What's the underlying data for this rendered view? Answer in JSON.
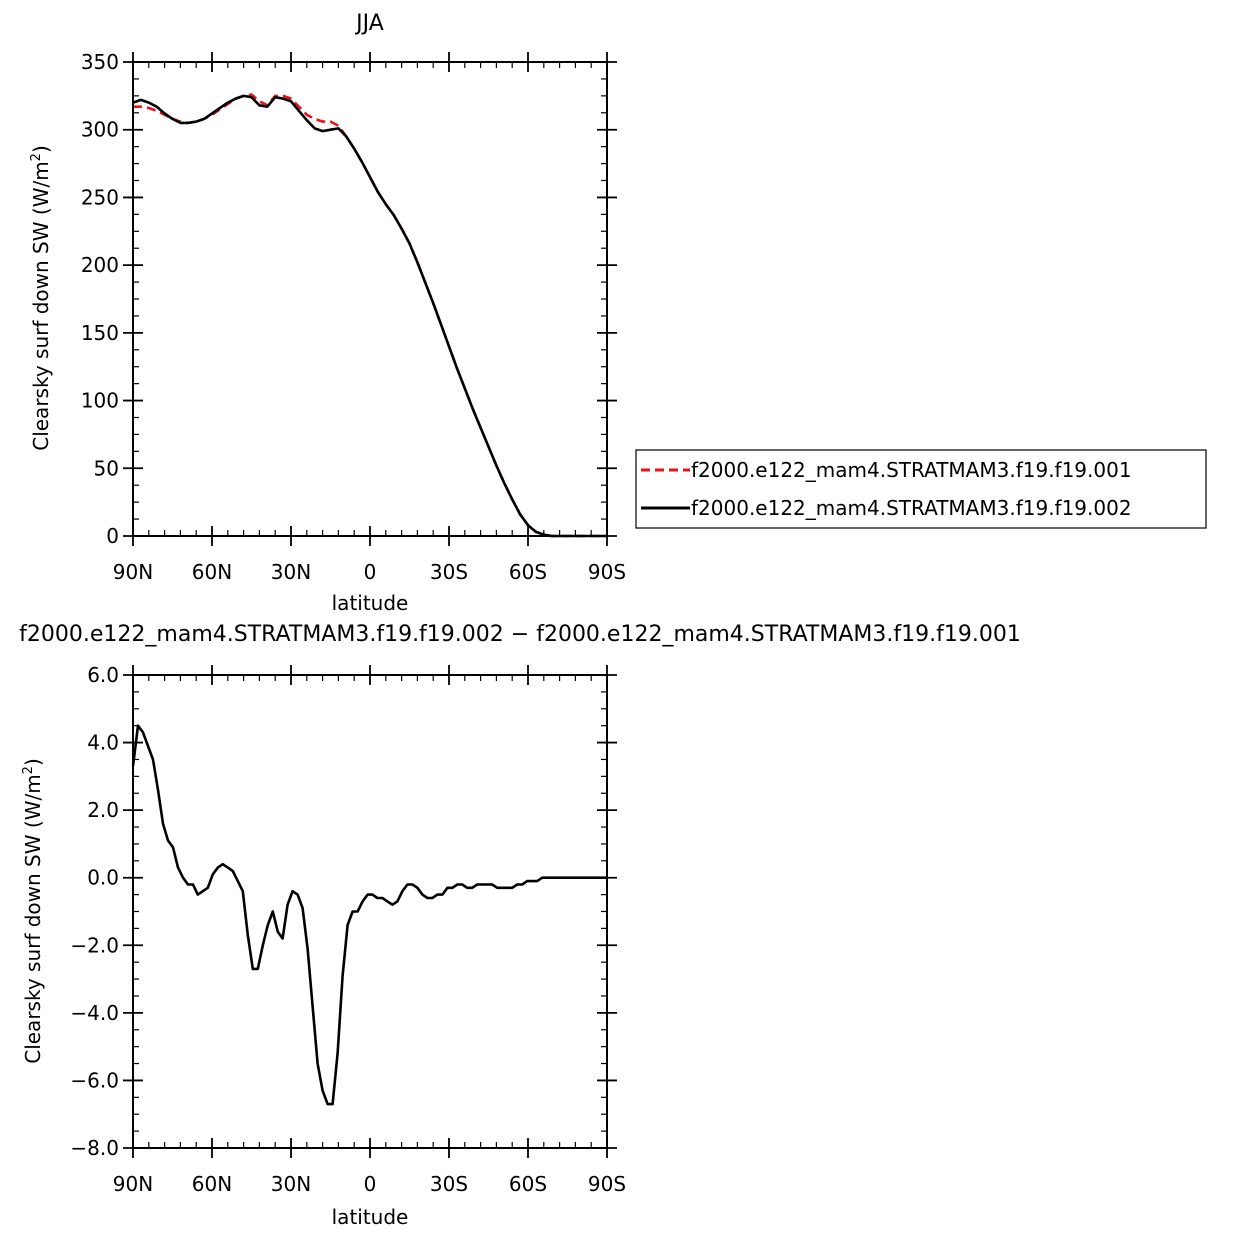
{
  "chart_data": [
    {
      "type": "line",
      "title": "JJA",
      "xlabel": "latitude",
      "ylabel": "Clearsky surf down SW (W/m²)",
      "ylabel_main": "Clearsky surf down SW (W/m",
      "ylabel_sup": "2",
      "ylabel_tail": ")",
      "xlim": [
        90,
        -90
      ],
      "ylim": [
        0,
        350
      ],
      "xticks": [
        90,
        60,
        30,
        0,
        -30,
        -60,
        -90
      ],
      "xtick_labels": [
        "90N",
        "60N",
        "30N",
        "0",
        "30S",
        "60S",
        "90S"
      ],
      "yticks": [
        0,
        50,
        100,
        150,
        200,
        250,
        300,
        350
      ],
      "ytick_labels": [
        "0",
        "50",
        "100",
        "150",
        "200",
        "250",
        "300",
        "350"
      ],
      "legend": {
        "position": "right",
        "entries": [
          "f2000.e122_mam4.STRATMAM3.f19.f19.001",
          "f2000.e122_mam4.STRATMAM3.f19.f19.002"
        ]
      },
      "series": [
        {
          "name": "f2000.e122_mam4.STRATMAM3.f19.f19.001",
          "color": "#e8121b",
          "dash": "dashed",
          "x": [
            90,
            87,
            84,
            81,
            78,
            75,
            72,
            69,
            66,
            63,
            60,
            57,
            54,
            51,
            48,
            45,
            42,
            39,
            36,
            33,
            30,
            27,
            24,
            21,
            18,
            15,
            12,
            9,
            6,
            3,
            0,
            -3,
            -6,
            -9,
            -12,
            -15,
            -18,
            -21,
            -24,
            -27,
            -30,
            -33,
            -36,
            -39,
            -42,
            -45,
            -48,
            -51,
            -54,
            -57,
            -60,
            -63,
            -66,
            -69,
            -72,
            -75,
            -78,
            -81,
            -84,
            -87,
            -90
          ],
          "y": [
            317,
            317,
            316,
            314,
            311,
            308,
            306,
            305,
            306,
            308,
            311,
            315,
            319,
            323,
            325,
            326,
            321,
            318,
            325,
            325,
            323,
            317,
            311,
            308,
            306,
            306,
            303,
            295,
            286,
            276,
            265,
            254,
            245,
            237,
            227,
            216,
            202,
            187,
            172,
            156,
            140,
            124,
            109,
            94,
            80,
            66,
            52,
            39,
            27,
            16,
            8,
            3,
            1,
            0,
            0,
            0,
            0,
            0,
            0,
            0,
            0
          ]
        },
        {
          "name": "f2000.e122_mam4.STRATMAM3.f19.f19.002",
          "color": "#000000",
          "dash": "solid",
          "x": [
            90,
            87,
            84,
            81,
            78,
            75,
            72,
            69,
            66,
            63,
            60,
            57,
            54,
            51,
            48,
            45,
            42,
            39,
            36,
            33,
            30,
            27,
            24,
            21,
            18,
            15,
            12,
            9,
            6,
            3,
            0,
            -3,
            -6,
            -9,
            -12,
            -15,
            -18,
            -21,
            -24,
            -27,
            -30,
            -33,
            -36,
            -39,
            -42,
            -45,
            -48,
            -51,
            -54,
            -57,
            -60,
            -63,
            -66,
            -69,
            -72,
            -75,
            -78,
            -81,
            -84,
            -87,
            -90
          ],
          "y": [
            320,
            322,
            320,
            317,
            312,
            308,
            305,
            305,
            306,
            308,
            312,
            316,
            320,
            323,
            325,
            324,
            318,
            317,
            324,
            323,
            321,
            314,
            307,
            301,
            299,
            300,
            301,
            295,
            286,
            276,
            265,
            254,
            245,
            237,
            227,
            216,
            202,
            187,
            172,
            156,
            140,
            124,
            109,
            94,
            80,
            66,
            52,
            39,
            27,
            16,
            8,
            3,
            1,
            0,
            0,
            0,
            0,
            0,
            0,
            0,
            0
          ]
        }
      ]
    },
    {
      "type": "line",
      "title": "f2000.e122_mam4.STRATMAM3.f19.f19.002 − f2000.e122_mam4.STRATMAM3.f19.f19.001",
      "xlabel": "latitude",
      "ylabel": "Clearsky surf down SW (W/m²)",
      "ylabel_main": "Clearsky surf down SW (W/m",
      "ylabel_sup": "2",
      "ylabel_tail": ")",
      "xlim": [
        90,
        -90
      ],
      "ylim": [
        -8.0,
        6.0
      ],
      "xticks": [
        90,
        60,
        30,
        0,
        -30,
        -60,
        -90
      ],
      "xtick_labels": [
        "90N",
        "60N",
        "30N",
        "0",
        "30S",
        "60S",
        "90S"
      ],
      "yticks": [
        -8,
        -6,
        -4,
        -2,
        0,
        2,
        4,
        6
      ],
      "ytick_labels": [
        "−8.0",
        "−6.0",
        "−4.0",
        "−2.0",
        "0.0",
        "2.0",
        "4.0",
        "6.0"
      ],
      "series": [
        {
          "color": "#000000",
          "dash": "solid",
          "x": [
            90,
            88.1,
            86.2,
            84.3,
            82.4,
            80.5,
            78.6,
            76.7,
            74.8,
            72.9,
            71.0,
            69.1,
            67.2,
            65.4,
            63.5,
            61.6,
            59.7,
            57.8,
            55.9,
            54.0,
            52.1,
            50.2,
            48.3,
            46.4,
            44.5,
            42.6,
            40.7,
            38.8,
            36.9,
            35.0,
            33.2,
            31.3,
            29.4,
            27.5,
            25.6,
            23.7,
            21.8,
            19.9,
            18.0,
            16.1,
            14.2,
            12.3,
            10.4,
            8.5,
            6.6,
            4.7,
            2.8,
            0.9,
            -0.9,
            -2.8,
            -4.7,
            -6.6,
            -8.5,
            -10.4,
            -12.3,
            -14.2,
            -16.1,
            -18.0,
            -19.9,
            -21.8,
            -23.7,
            -25.6,
            -27.5,
            -29.4,
            -31.3,
            -33.2,
            -35.0,
            -36.9,
            -38.8,
            -40.7,
            -42.6,
            -44.5,
            -46.4,
            -48.3,
            -50.2,
            -52.1,
            -54.0,
            -55.9,
            -57.8,
            -59.7,
            -61.6,
            -63.5,
            -65.4,
            -67.2,
            -69.1,
            -71.0,
            -72.9,
            -74.8,
            -76.7,
            -78.6,
            -80.5,
            -82.4,
            -84.3,
            -86.2,
            -88.1,
            -90
          ],
          "y": [
            3.3,
            4.5,
            4.3,
            3.9,
            3.5,
            2.6,
            1.6,
            1.1,
            0.9,
            0.3,
            -0.0,
            -0.2,
            -0.2,
            -0.5,
            -0.4,
            -0.3,
            0.1,
            0.3,
            0.4,
            0.3,
            0.2,
            -0.1,
            -0.4,
            -1.7,
            -2.7,
            -2.7,
            -2.0,
            -1.4,
            -1.0,
            -1.6,
            -1.8,
            -0.8,
            -0.4,
            -0.5,
            -0.9,
            -2.1,
            -3.8,
            -5.5,
            -6.3,
            -6.7,
            -6.7,
            -5.2,
            -2.9,
            -1.4,
            -1.0,
            -1.0,
            -0.7,
            -0.5,
            -0.5,
            -0.6,
            -0.6,
            -0.7,
            -0.8,
            -0.7,
            -0.4,
            -0.2,
            -0.2,
            -0.3,
            -0.5,
            -0.6,
            -0.6,
            -0.5,
            -0.5,
            -0.3,
            -0.3,
            -0.2,
            -0.2,
            -0.3,
            -0.3,
            -0.2,
            -0.2,
            -0.2,
            -0.2,
            -0.3,
            -0.3,
            -0.3,
            -0.3,
            -0.2,
            -0.2,
            -0.1,
            -0.1,
            -0.1,
            0.0,
            0.0,
            0.0,
            0.0,
            0.0,
            0.0,
            0.0,
            0.0,
            0.0,
            0.0,
            0.0,
            0.0,
            0.0,
            0.0
          ]
        }
      ]
    }
  ]
}
